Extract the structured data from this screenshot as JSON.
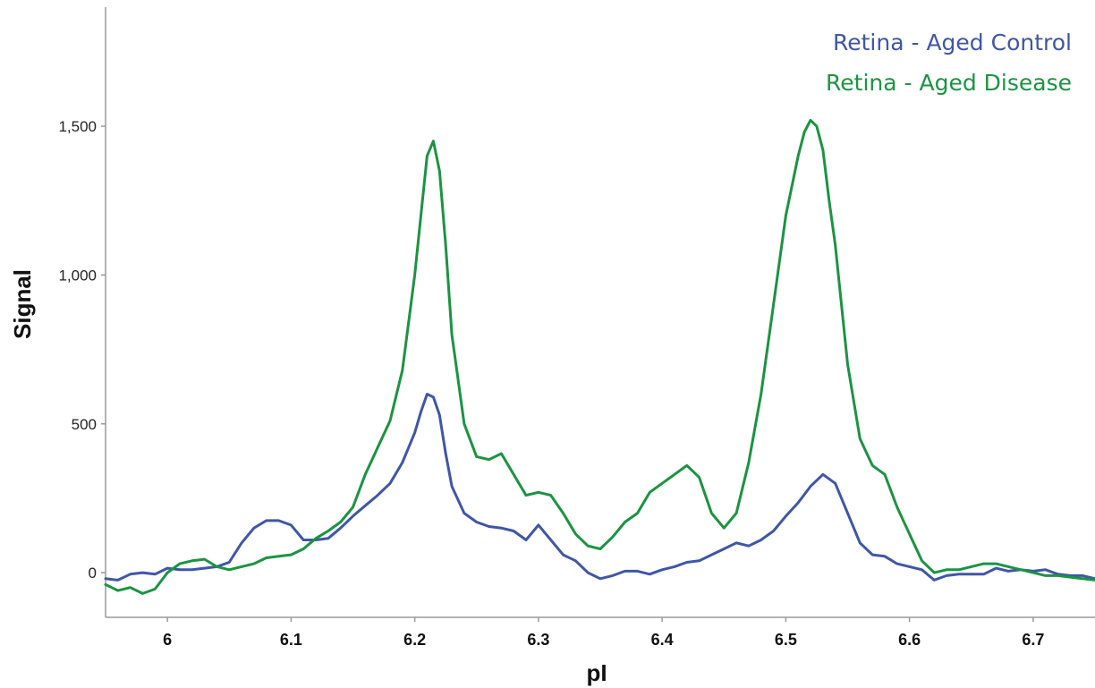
{
  "chart_data": {
    "type": "line",
    "title": "",
    "xlabel": "pI",
    "ylabel": "Signal",
    "xlim": [
      5.95,
      6.75
    ],
    "ylim": [
      -150,
      1900
    ],
    "x_ticks": [
      6.0,
      6.1,
      6.2,
      6.3,
      6.4,
      6.5,
      6.6,
      6.7
    ],
    "x_tick_labels": [
      "6",
      "6.1",
      "6.2",
      "6.3",
      "6.4",
      "6.5",
      "6.6",
      "6.7"
    ],
    "y_ticks": [
      0,
      500,
      1000,
      1500
    ],
    "y_tick_labels": [
      "0",
      "500",
      "1,000",
      "1,500"
    ],
    "grid": false,
    "legend_position": "top-right",
    "series": [
      {
        "name": "Retina - Aged Control",
        "color": "#3f56a8",
        "x": [
          5.95,
          5.96,
          5.97,
          5.98,
          5.99,
          6.0,
          6.01,
          6.02,
          6.03,
          6.04,
          6.05,
          6.06,
          6.07,
          6.08,
          6.09,
          6.1,
          6.11,
          6.12,
          6.13,
          6.14,
          6.15,
          6.16,
          6.17,
          6.18,
          6.19,
          6.2,
          6.205,
          6.21,
          6.215,
          6.22,
          6.225,
          6.23,
          6.24,
          6.25,
          6.26,
          6.27,
          6.28,
          6.29,
          6.3,
          6.31,
          6.32,
          6.33,
          6.34,
          6.35,
          6.36,
          6.37,
          6.38,
          6.39,
          6.4,
          6.41,
          6.42,
          6.43,
          6.44,
          6.45,
          6.46,
          6.47,
          6.48,
          6.49,
          6.5,
          6.51,
          6.52,
          6.53,
          6.54,
          6.55,
          6.56,
          6.57,
          6.58,
          6.59,
          6.6,
          6.61,
          6.62,
          6.63,
          6.64,
          6.65,
          6.66,
          6.67,
          6.68,
          6.69,
          6.7,
          6.71,
          6.72,
          6.73,
          6.74,
          6.75
        ],
        "values": [
          -20,
          -25,
          -5,
          0,
          -5,
          15,
          10,
          10,
          15,
          20,
          35,
          100,
          150,
          175,
          175,
          160,
          110,
          110,
          115,
          150,
          190,
          225,
          260,
          300,
          370,
          470,
          540,
          600,
          590,
          530,
          400,
          290,
          200,
          170,
          155,
          150,
          140,
          110,
          160,
          110,
          60,
          40,
          0,
          -20,
          -10,
          5,
          5,
          -5,
          10,
          20,
          35,
          40,
          60,
          80,
          100,
          90,
          110,
          140,
          190,
          235,
          290,
          330,
          300,
          200,
          100,
          60,
          55,
          30,
          20,
          10,
          -25,
          -10,
          -5,
          -5,
          -5,
          15,
          5,
          10,
          5,
          10,
          -5,
          -10,
          -10,
          -20
        ]
      },
      {
        "name": "Retina - Aged Disease",
        "color": "#1b9441",
        "x": [
          5.95,
          5.96,
          5.97,
          5.98,
          5.99,
          6.0,
          6.01,
          6.02,
          6.03,
          6.04,
          6.05,
          6.06,
          6.07,
          6.08,
          6.09,
          6.1,
          6.11,
          6.12,
          6.13,
          6.14,
          6.15,
          6.16,
          6.17,
          6.18,
          6.19,
          6.2,
          6.205,
          6.21,
          6.215,
          6.22,
          6.225,
          6.23,
          6.24,
          6.25,
          6.26,
          6.27,
          6.28,
          6.29,
          6.3,
          6.31,
          6.32,
          6.33,
          6.34,
          6.35,
          6.36,
          6.37,
          6.38,
          6.39,
          6.4,
          6.41,
          6.42,
          6.43,
          6.44,
          6.45,
          6.46,
          6.47,
          6.48,
          6.49,
          6.5,
          6.51,
          6.515,
          6.52,
          6.525,
          6.53,
          6.535,
          6.54,
          6.55,
          6.56,
          6.57,
          6.58,
          6.59,
          6.6,
          6.61,
          6.62,
          6.63,
          6.64,
          6.65,
          6.66,
          6.67,
          6.68,
          6.69,
          6.7,
          6.71,
          6.72,
          6.73,
          6.74,
          6.75
        ],
        "values": [
          -40,
          -60,
          -50,
          -70,
          -55,
          0,
          30,
          40,
          45,
          20,
          10,
          20,
          30,
          50,
          55,
          60,
          80,
          115,
          140,
          170,
          220,
          330,
          420,
          510,
          680,
          1000,
          1200,
          1400,
          1450,
          1350,
          1100,
          800,
          500,
          390,
          380,
          400,
          330,
          260,
          270,
          260,
          200,
          130,
          90,
          80,
          120,
          170,
          200,
          270,
          300,
          330,
          360,
          320,
          200,
          150,
          200,
          370,
          600,
          900,
          1200,
          1400,
          1480,
          1520,
          1500,
          1420,
          1250,
          1100,
          700,
          450,
          360,
          330,
          220,
          130,
          40,
          0,
          10,
          10,
          20,
          30,
          30,
          20,
          10,
          0,
          -10,
          -10,
          -15,
          -20,
          -25
        ]
      }
    ]
  }
}
